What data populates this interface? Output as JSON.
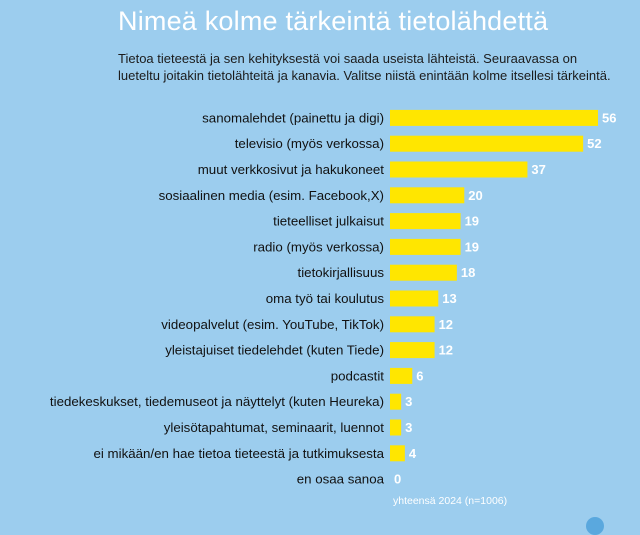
{
  "header": {
    "title": "Nimeä kolme tärkeintä tietolähdettä",
    "subtitle": "Tietoa tieteestä ja sen kehityksestä voi saada useista lähteistä. Seuraavassa on lueteltu joitakin tietolähteitä ja kanavia. Valitse niistä enintään kolme itsellesi tärkeintä."
  },
  "chart_data": {
    "type": "bar",
    "orientation": "horizontal",
    "categories": [
      "sanomalehdet (painettu ja digi)",
      "televisio (myös verkossa)",
      "muut verkkosivut ja hakukoneet",
      "sosiaalinen media (esim. Facebook,X)",
      "tieteelliset julkaisut",
      "radio (myös verkossa)",
      "tietokirjallisuus",
      "oma työ tai koulutus",
      "videopalvelut (esim. YouTube, TikTok)",
      "yleistajuiset tiedelehdet (kuten Tiede)",
      "podcastit",
      "tiedekeskukset, tiedemuseot ja näyttelyt (kuten Heureka)",
      "yleisötapahtumat, seminaarit, luennot",
      "ei mikään/en hae tietoa tieteestä ja tutkimuksesta",
      "en osaa sanoa"
    ],
    "values": [
      56,
      52,
      37,
      20,
      19,
      19,
      18,
      13,
      12,
      12,
      6,
      3,
      3,
      4,
      0
    ],
    "series_name": "yhteensä 2024 (n=1006)",
    "bar_color": "#ffe600",
    "xlim": [
      0,
      56
    ]
  }
}
